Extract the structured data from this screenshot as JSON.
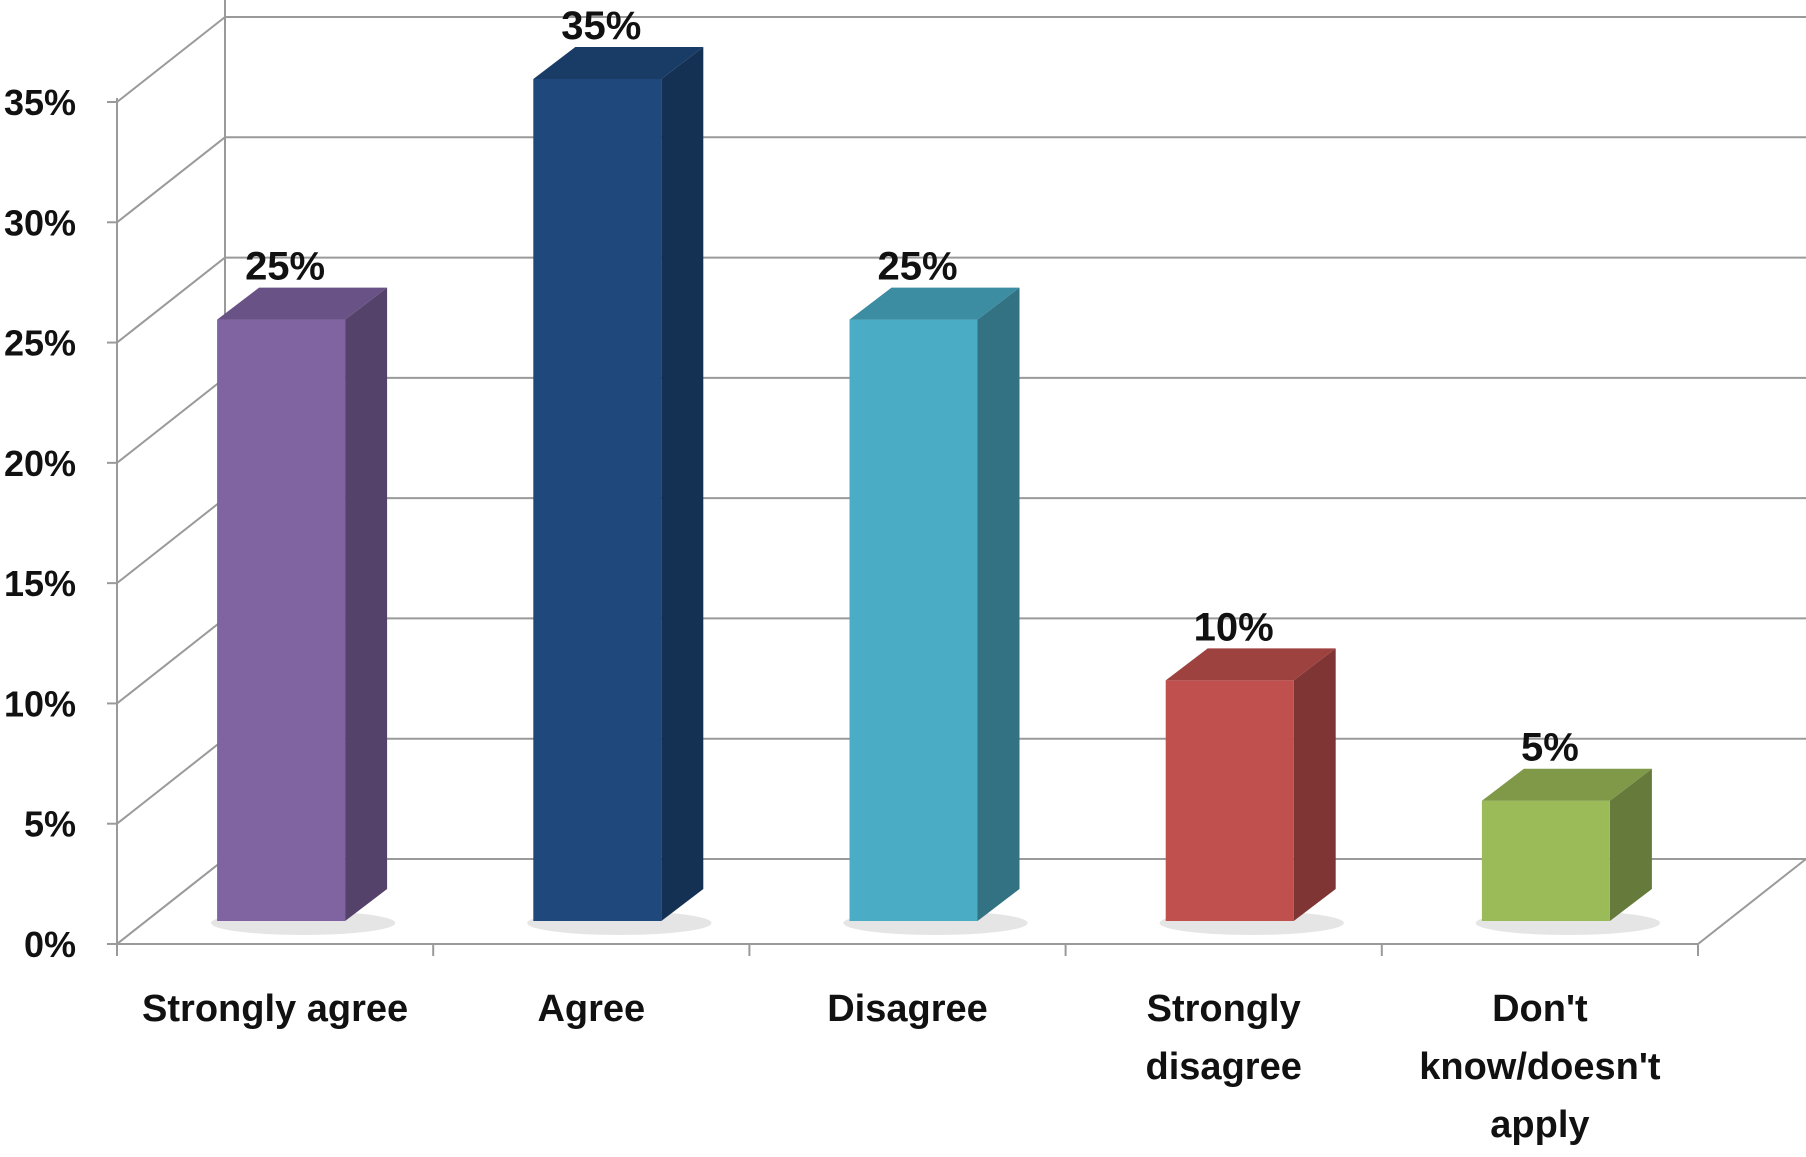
{
  "chart_data": {
    "type": "bar",
    "style": "3d-column",
    "title": "",
    "xlabel": "",
    "ylabel": "",
    "categories": [
      "Strongly agree",
      "Agree",
      "Disagree",
      "Strongly disagree",
      "Don't know/doesn't apply"
    ],
    "category_label_lines": [
      [
        "Strongly agree"
      ],
      [
        "Agree"
      ],
      [
        "Disagree"
      ],
      [
        "Strongly",
        "disagree"
      ],
      [
        "Don't",
        "know/doesn't",
        "apply"
      ]
    ],
    "values": [
      25,
      35,
      25,
      10,
      5
    ],
    "data_labels": [
      "25%",
      "35%",
      "25%",
      "10%",
      "5%"
    ],
    "colors": [
      "#8064A2",
      "#1F497D",
      "#4BACC6",
      "#C0504D",
      "#9BBB59"
    ],
    "ylim": [
      0,
      35
    ],
    "y_ticks": [
      0,
      5,
      10,
      15,
      20,
      25,
      30,
      35
    ],
    "y_tick_labels": [
      "0%",
      "5%",
      "10%",
      "15%",
      "20%",
      "25%",
      "30%",
      "35%"
    ],
    "grid": true,
    "legend": "none"
  }
}
